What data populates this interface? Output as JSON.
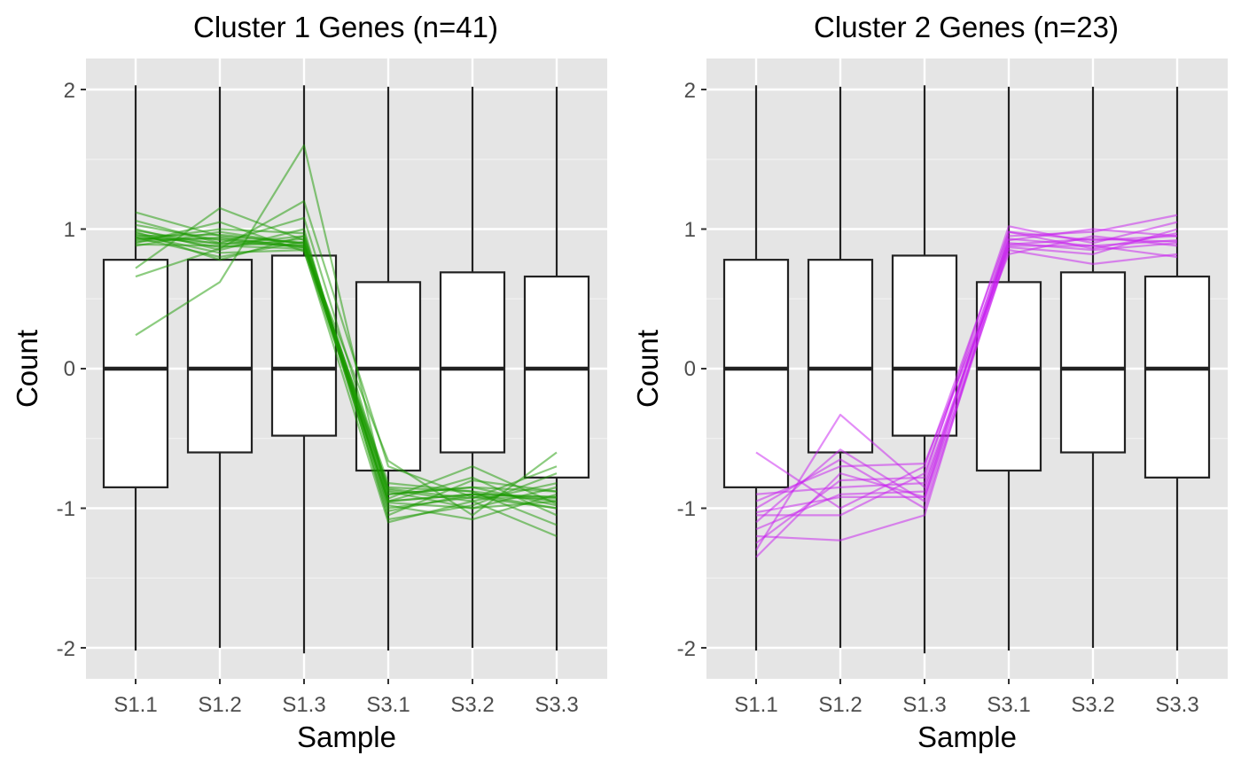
{
  "chart_data": [
    {
      "type": "boxplot",
      "title": "Cluster 1 Genes (n=41)",
      "xlabel": "Sample",
      "ylabel": "Count",
      "categories": [
        "S1.1",
        "S1.2",
        "S1.3",
        "S3.1",
        "S3.2",
        "S3.3"
      ],
      "yticks": [
        "-2",
        "-1",
        "0",
        "1",
        "2"
      ],
      "ylim": [
        -2.25,
        2.25
      ],
      "grid": true,
      "boxes": [
        {
          "sample": "S1.1",
          "min": -2.02,
          "q1": -0.85,
          "median": 0.0,
          "q3": 0.78,
          "max": 2.03
        },
        {
          "sample": "S1.2",
          "min": -2.0,
          "q1": -0.6,
          "median": 0.0,
          "q3": 0.78,
          "max": 2.02
        },
        {
          "sample": "S1.3",
          "min": -2.04,
          "q1": -0.48,
          "median": 0.0,
          "q3": 0.81,
          "max": 2.03
        },
        {
          "sample": "S3.1",
          "min": -2.02,
          "q1": -0.73,
          "median": 0.0,
          "q3": 0.62,
          "max": 2.02
        },
        {
          "sample": "S3.2",
          "min": -2.0,
          "q1": -0.6,
          "median": 0.0,
          "q3": 0.69,
          "max": 2.02
        },
        {
          "sample": "S3.3",
          "min": -2.02,
          "q1": -0.78,
          "median": 0.0,
          "q3": 0.66,
          "max": 2.02
        }
      ],
      "line_color": "#1a9900",
      "gene_profiles": [
        [
          0.94,
          0.9,
          0.88,
          -0.95,
          -0.9,
          -0.92
        ],
        [
          0.24,
          0.62,
          1.6,
          -0.95,
          -0.9,
          -0.92
        ],
        [
          0.66,
          0.86,
          1.2,
          -0.7,
          -0.92,
          -1.0
        ],
        [
          1.12,
          0.95,
          0.9,
          -0.85,
          -0.88,
          -0.95
        ],
        [
          0.72,
          1.15,
          0.92,
          -1.05,
          -0.8,
          -0.88
        ],
        [
          0.96,
          0.83,
          0.85,
          -1.1,
          -0.95,
          -1.2
        ],
        [
          1.03,
          0.92,
          0.87,
          -0.66,
          -1.05,
          -0.6
        ],
        [
          0.98,
          0.78,
          0.95,
          -0.9,
          -0.85,
          -0.98
        ],
        [
          0.92,
          1.0,
          0.97,
          -1.0,
          -0.92,
          -0.93
        ],
        [
          0.89,
          0.88,
          0.86,
          -0.88,
          -1.0,
          -0.85
        ],
        [
          0.95,
          0.96,
          0.9,
          -0.95,
          -0.78,
          -1.05
        ],
        [
          1.0,
          0.85,
          1.0,
          -1.08,
          -0.98,
          -0.75
        ],
        [
          0.93,
          0.93,
          0.88,
          -0.82,
          -0.88,
          -1.12
        ],
        [
          0.97,
          0.87,
          0.93,
          -0.98,
          -1.08,
          -0.9
        ],
        [
          0.9,
          1.05,
          0.84,
          -0.93,
          -0.7,
          -0.97
        ],
        [
          1.06,
          0.9,
          1.08,
          -0.87,
          -0.95,
          -0.82
        ],
        [
          0.94,
          0.8,
          0.91,
          -1.02,
          -0.9,
          -1.0
        ],
        [
          0.88,
          0.98,
          0.89,
          -0.9,
          -0.85,
          -0.88
        ],
        [
          0.99,
          0.89,
          0.95,
          -0.96,
          -1.0,
          -0.95
        ],
        [
          0.91,
          0.94,
          0.87,
          -0.86,
          -0.93,
          -0.7
        ]
      ]
    },
    {
      "type": "boxplot",
      "title": "Cluster 2 Genes (n=23)",
      "xlabel": "Sample",
      "ylabel": "Count",
      "categories": [
        "S1.1",
        "S1.2",
        "S1.3",
        "S3.1",
        "S3.2",
        "S3.3"
      ],
      "yticks": [
        "-2",
        "-1",
        "0",
        "1",
        "2"
      ],
      "ylim": [
        -2.25,
        2.25
      ],
      "grid": true,
      "boxes": [
        {
          "sample": "S1.1",
          "min": -2.02,
          "q1": -0.85,
          "median": 0.0,
          "q3": 0.78,
          "max": 2.03
        },
        {
          "sample": "S1.2",
          "min": -2.0,
          "q1": -0.6,
          "median": 0.0,
          "q3": 0.78,
          "max": 2.02
        },
        {
          "sample": "S1.3",
          "min": -2.04,
          "q1": -0.48,
          "median": 0.0,
          "q3": 0.81,
          "max": 2.03
        },
        {
          "sample": "S3.1",
          "min": -2.02,
          "q1": -0.73,
          "median": 0.0,
          "q3": 0.62,
          "max": 2.02
        },
        {
          "sample": "S3.2",
          "min": -2.0,
          "q1": -0.6,
          "median": 0.0,
          "q3": 0.69,
          "max": 2.02
        },
        {
          "sample": "S3.3",
          "min": -2.02,
          "q1": -0.78,
          "median": 0.0,
          "q3": 0.66,
          "max": 2.02
        }
      ],
      "line_color": "#c71bf0",
      "gene_profiles": [
        [
          -1.03,
          -0.92,
          -0.92,
          0.88,
          0.88,
          0.92
        ],
        [
          -0.6,
          -1.0,
          -0.7,
          0.98,
          0.92,
          0.95
        ],
        [
          -1.3,
          -0.33,
          -0.85,
          0.9,
          0.85,
          0.9
        ],
        [
          -1.2,
          -1.23,
          -1.05,
          0.95,
          0.98,
          1.1
        ],
        [
          -1.1,
          -0.58,
          -0.95,
          0.85,
          0.75,
          0.82
        ],
        [
          -1.25,
          -0.8,
          -0.78,
          1.02,
          0.9,
          1.05
        ],
        [
          -0.95,
          -0.7,
          -0.68,
          0.82,
          0.95,
          0.88
        ],
        [
          -1.15,
          -0.9,
          -0.88,
          0.92,
          1.0,
          0.95
        ],
        [
          -1.0,
          -0.65,
          -1.0,
          0.87,
          0.82,
          1.0
        ],
        [
          -1.05,
          -1.05,
          -0.75,
          0.93,
          0.88,
          0.8
        ],
        [
          -1.35,
          -0.75,
          -0.92,
          0.98,
          0.86,
          0.97
        ],
        [
          -0.9,
          -0.85,
          -0.82,
          0.89,
          0.93,
          0.91
        ]
      ]
    }
  ]
}
